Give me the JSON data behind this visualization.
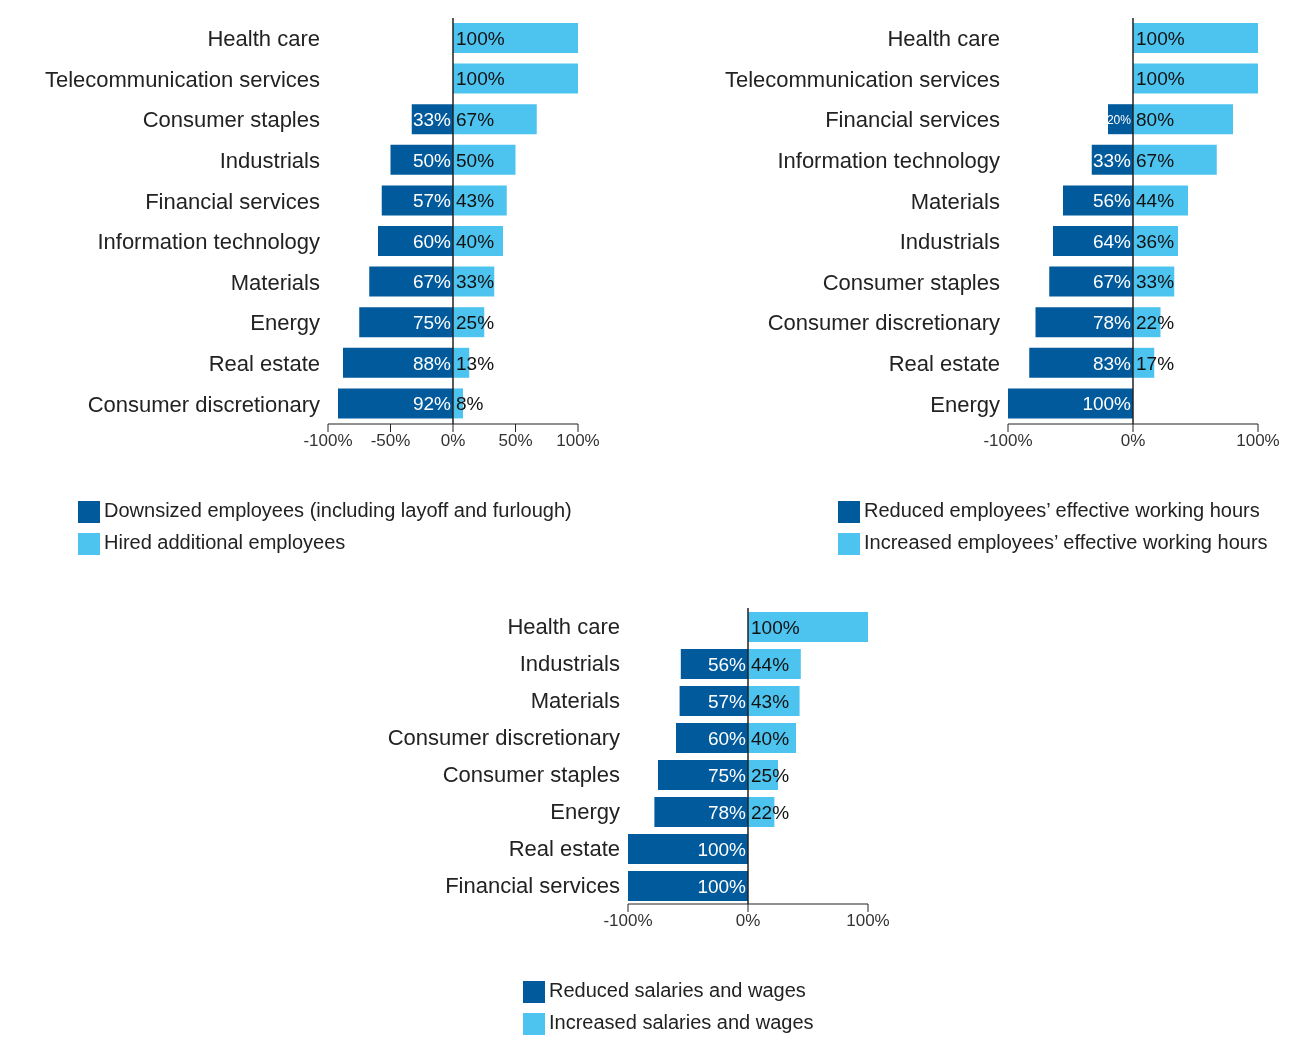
{
  "chart_data": [
    {
      "type": "bar",
      "orientation": "horizontal",
      "legend": "bottom",
      "categories": [
        "Health care",
        "Telecommunication services",
        "Consumer staples",
        "Industrials",
        "Financial services",
        "Information technology",
        "Materials",
        "Energy",
        "Real estate",
        "Consumer discretionary"
      ],
      "xlim": [
        -100,
        100
      ],
      "xticks": [
        {
          "value": -100,
          "label": "-100%"
        },
        {
          "value": -50,
          "label": "-50%"
        },
        {
          "value": 0,
          "label": "0%"
        },
        {
          "value": 50,
          "label": "50%"
        },
        {
          "value": 100,
          "label": "100%"
        }
      ],
      "series": [
        {
          "name": "Downsized employees (including layoff and furlough)",
          "color": "#005a9c",
          "values": [
            null,
            null,
            33,
            50,
            57,
            60,
            67,
            75,
            88,
            92
          ],
          "base": [
            null,
            null,
            -33,
            -50,
            -57,
            -60,
            -67,
            -75,
            -88,
            -92
          ],
          "value_labels": [
            null,
            null,
            "33%",
            "50%",
            "57%",
            "60%",
            "67%",
            "75%",
            "88%",
            "92%"
          ]
        },
        {
          "name": "Hired additional employees",
          "color": "#4dc3f0",
          "values": [
            100,
            100,
            67,
            50,
            43,
            40,
            33,
            25,
            13,
            8
          ],
          "value_labels": [
            "100%",
            "100%",
            "67%",
            "50%",
            "43%",
            "40%",
            "33%",
            "25%",
            "13%",
            "8%"
          ]
        }
      ]
    },
    {
      "type": "bar",
      "orientation": "horizontal",
      "legend": "bottom",
      "categories": [
        "Health care",
        "Telecommunication services",
        "Financial services",
        "Information technology",
        "Materials",
        "Industrials",
        "Consumer staples",
        "Consumer discretionary",
        "Real estate",
        "Energy"
      ],
      "xlim": [
        -100,
        100
      ],
      "xticks": [
        {
          "value": -100,
          "label": "-100%"
        },
        {
          "value": 0,
          "label": "0%"
        },
        {
          "value": 100,
          "label": "100%"
        }
      ],
      "series": [
        {
          "name": "Reduced employees’ effective working hours",
          "color": "#005a9c",
          "values": [
            null,
            null,
            20,
            33,
            56,
            64,
            67,
            78,
            83,
            100
          ],
          "base": [
            null,
            null,
            -20,
            -33,
            -56,
            -64,
            -67,
            -78,
            -83,
            -100
          ],
          "value_labels": [
            null,
            null,
            "20%",
            "33%",
            "56%",
            "64%",
            "67%",
            "78%",
            "83%",
            "100%"
          ]
        },
        {
          "name": "Increased employees’ effective working hours",
          "color": "#4dc3f0",
          "values": [
            100,
            100,
            80,
            67,
            44,
            36,
            33,
            22,
            17,
            null
          ],
          "value_labels": [
            "100%",
            "100%",
            "80%",
            "67%",
            "44%",
            "36%",
            "33%",
            "22%",
            "17%",
            null
          ]
        }
      ]
    },
    {
      "type": "bar",
      "orientation": "horizontal",
      "legend": "bottom",
      "categories": [
        "Health care",
        "Industrials",
        "Materials",
        "Consumer discretionary",
        "Consumer staples",
        "Energy",
        "Real estate",
        "Financial services"
      ],
      "xlim": [
        -100,
        100
      ],
      "xticks": [
        {
          "value": -100,
          "label": "-100%"
        },
        {
          "value": 0,
          "label": "0%"
        },
        {
          "value": 100,
          "label": "100%"
        }
      ],
      "series": [
        {
          "name": "Reduced salaries and wages",
          "color": "#005a9c",
          "values": [
            null,
            56,
            57,
            60,
            75,
            78,
            100,
            100
          ],
          "base": [
            null,
            -56,
            -57,
            -60,
            -75,
            -78,
            -100,
            -100
          ],
          "value_labels": [
            null,
            "56%",
            "57%",
            "60%",
            "75%",
            "78%",
            "100%",
            "100%"
          ]
        },
        {
          "name": "Increased salaries and wages",
          "color": "#4dc3f0",
          "values": [
            100,
            44,
            43,
            40,
            25,
            22,
            null,
            null
          ],
          "value_labels": [
            "100%",
            "44%",
            "43%",
            "40%",
            "25%",
            "22%",
            null,
            null
          ]
        }
      ]
    }
  ]
}
